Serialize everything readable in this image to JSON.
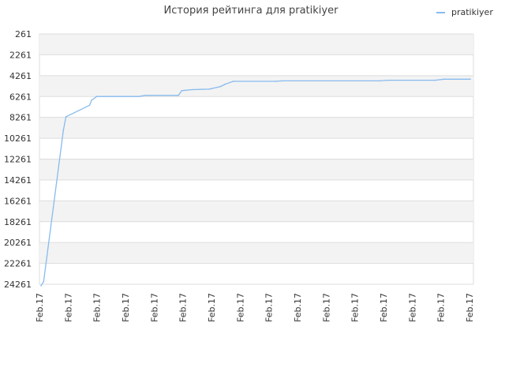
{
  "chart_data": {
    "type": "line",
    "title": "История рейтинга для pratikiyer",
    "xlabel": "",
    "ylabel": "",
    "y_inverted": true,
    "ylim": [
      261,
      24261
    ],
    "y_ticks": [
      "261",
      "2261",
      "4261",
      "6261",
      "8261",
      "10261",
      "12261",
      "14261",
      "16261",
      "18261",
      "20261",
      "22261",
      "24261"
    ],
    "x_ticks": [
      "Feb.17",
      "Feb.17",
      "Feb.17",
      "Feb.17",
      "Feb.17",
      "Feb.17",
      "Feb.17",
      "Feb.17",
      "Feb.17",
      "Feb.17",
      "Feb.17",
      "Feb.17",
      "Feb.17",
      "Feb.17",
      "Feb.17",
      "Feb.17"
    ],
    "grid": true,
    "alternating_bands": true,
    "legend": {
      "position": "top-right"
    },
    "series": [
      {
        "name": "pratikiyer",
        "color": "#88bbee",
        "x": [
          0.0,
          0.006,
          0.052,
          0.058,
          0.113,
          0.118,
          0.13,
          0.228,
          0.243,
          0.32,
          0.328,
          0.352,
          0.392,
          0.397,
          0.418,
          0.428,
          0.441,
          0.448,
          0.548,
          0.562,
          0.788,
          0.808,
          0.918,
          0.938,
          1.0
        ],
        "values": [
          24400,
          24000,
          9500,
          8200,
          7100,
          6600,
          6260,
          6260,
          6150,
          6150,
          5700,
          5600,
          5550,
          5500,
          5300,
          5100,
          4900,
          4800,
          4800,
          4760,
          4760,
          4700,
          4700,
          4600,
          4600
        ]
      }
    ]
  }
}
